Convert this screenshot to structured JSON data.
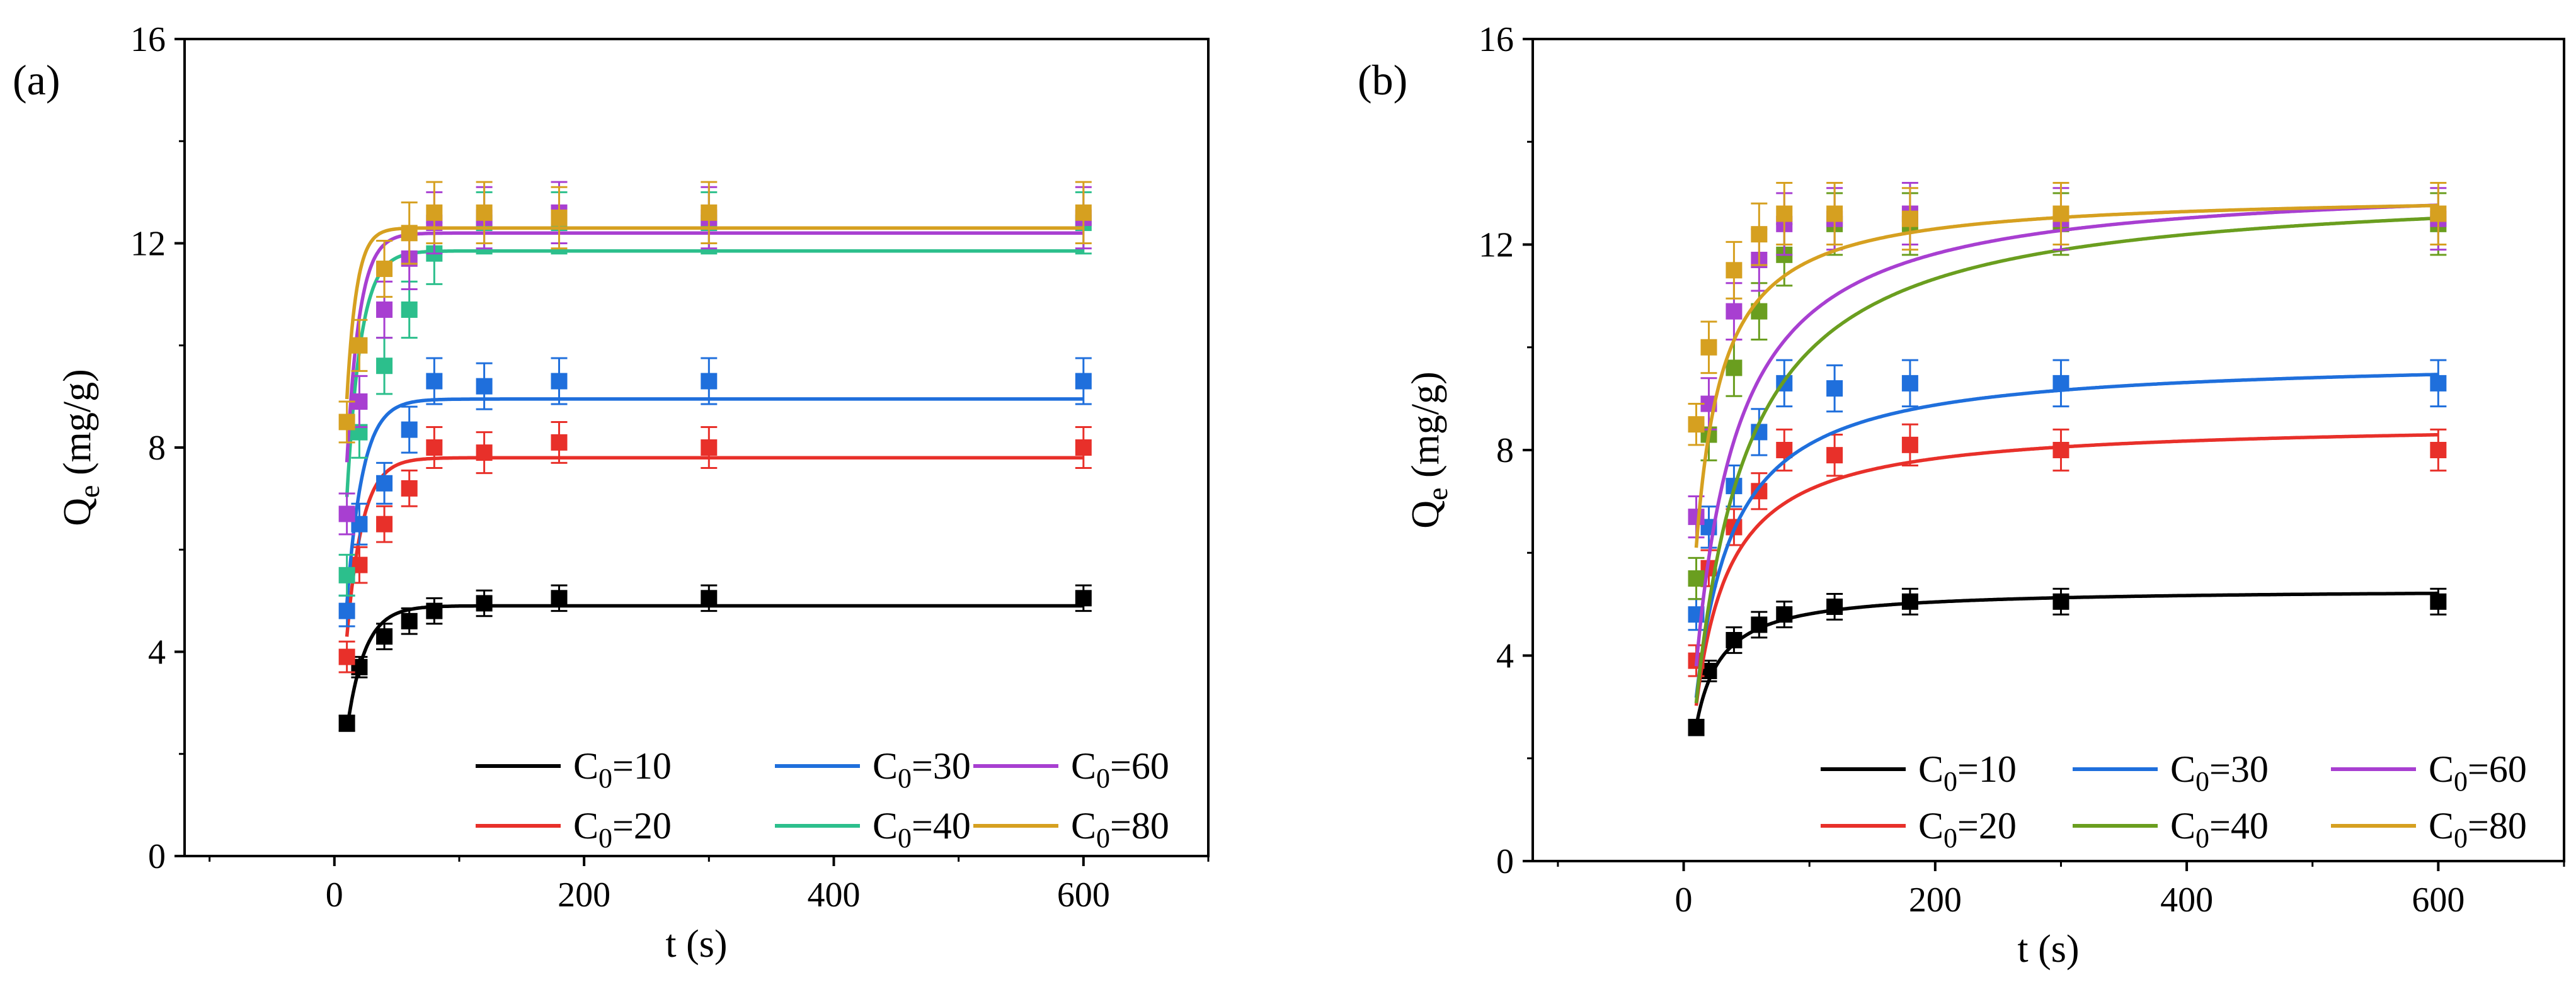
{
  "panels": [
    {
      "label": "(a)",
      "chart_data": {
        "type": "scatter",
        "xlabel": "t (s)",
        "ylabel": "Q_e (mg/g)",
        "xlim": [
          -120,
          700
        ],
        "ylim": [
          0,
          16
        ],
        "xticks": [
          0,
          200,
          400,
          600
        ],
        "yticks": [
          0,
          4,
          8,
          12,
          16
        ],
        "grid": false,
        "legend_position": "bottom-right",
        "fit_model": "pfo",
        "x": [
          10,
          20,
          40,
          60,
          80,
          120,
          180,
          300,
          600
        ],
        "series": [
          {
            "name": "C0=10",
            "legend_subscript": "0",
            "legend_prefix": "C",
            "legend_suffix": "=10",
            "color": "#000000",
            "values": [
              2.6,
              3.7,
              4.3,
              4.6,
              4.8,
              4.95,
              5.05,
              5.05,
              5.05
            ],
            "errors": [
              0.15,
              0.2,
              0.25,
              0.25,
              0.25,
              0.25,
              0.25,
              0.25,
              0.25
            ],
            "fit_qe": 4.9,
            "fit_k": 0.07
          },
          {
            "name": "C0=20",
            "legend_subscript": "0",
            "legend_prefix": "C",
            "legend_suffix": "=20",
            "color": "#e8302a",
            "values": [
              3.9,
              5.7,
              6.5,
              7.2,
              8.0,
              7.9,
              8.1,
              8.0,
              8.0
            ],
            "errors": [
              0.3,
              0.35,
              0.35,
              0.35,
              0.4,
              0.4,
              0.4,
              0.4,
              0.4
            ],
            "fit_qe": 7.8,
            "fit_k": 0.08
          },
          {
            "name": "C0=30",
            "legend_subscript": "0",
            "legend_prefix": "C",
            "legend_suffix": "=30",
            "color": "#1f6fdc",
            "values": [
              4.8,
              6.5,
              7.3,
              8.35,
              9.3,
              9.2,
              9.3,
              9.3,
              9.3
            ],
            "errors": [
              0.3,
              0.4,
              0.4,
              0.45,
              0.45,
              0.45,
              0.45,
              0.45,
              0.45
            ],
            "fit_qe": 8.95,
            "fit_k": 0.08
          },
          {
            "name": "C0=40",
            "legend_subscript": "0",
            "legend_prefix": "C",
            "legend_suffix": "=40",
            "color": "#2cbf8c",
            "values": [
              5.5,
              8.3,
              9.6,
              10.7,
              11.8,
              12.4,
              12.4,
              12.4,
              12.4
            ],
            "errors": [
              0.4,
              0.5,
              0.55,
              0.55,
              0.6,
              0.6,
              0.6,
              0.6,
              0.6
            ],
            "fit_qe": 11.85,
            "fit_k": 0.09
          },
          {
            "name": "C0=60",
            "legend_subscript": "0",
            "legend_prefix": "C",
            "legend_suffix": "=60",
            "color": "#a83fd1",
            "values": [
              6.7,
              8.9,
              10.7,
              11.7,
              12.4,
              12.5,
              12.6,
              12.5,
              12.5
            ],
            "errors": [
              0.4,
              0.5,
              0.55,
              0.6,
              0.6,
              0.6,
              0.6,
              0.6,
              0.6
            ],
            "fit_qe": 12.2,
            "fit_k": 0.1
          },
          {
            "name": "C0=80",
            "legend_subscript": "0",
            "legend_prefix": "C",
            "legend_suffix": "=80",
            "color": "#d6a020",
            "values": [
              8.5,
              10.0,
              11.5,
              12.2,
              12.6,
              12.6,
              12.5,
              12.6,
              12.6
            ],
            "errors": [
              0.4,
              0.5,
              0.55,
              0.6,
              0.6,
              0.6,
              0.6,
              0.6,
              0.6
            ],
            "fit_qe": 12.3,
            "fit_k": 0.13
          }
        ]
      }
    },
    {
      "label": "(b)",
      "chart_data": {
        "type": "scatter",
        "xlabel": "t (s)",
        "ylabel": "Q_e (mg/g)",
        "xlim": [
          -120,
          700
        ],
        "ylim": [
          0,
          16
        ],
        "xticks": [
          0,
          200,
          400,
          600
        ],
        "yticks": [
          0,
          4,
          8,
          12,
          16
        ],
        "grid": false,
        "legend_position": "bottom-right",
        "fit_model": "pso",
        "x": [
          10,
          20,
          40,
          60,
          80,
          120,
          180,
          300,
          600
        ],
        "series": [
          {
            "name": "C0=10",
            "legend_subscript": "0",
            "legend_prefix": "C",
            "legend_suffix": "=10",
            "color": "#000000",
            "values": [
              2.6,
              3.7,
              4.3,
              4.6,
              4.8,
              4.95,
              5.05,
              5.05,
              5.05
            ],
            "errors": [
              0.15,
              0.2,
              0.25,
              0.25,
              0.25,
              0.25,
              0.25,
              0.25,
              0.25
            ],
            "fit_qe": 5.3,
            "fit_k": 0.0185
          },
          {
            "name": "C0=20",
            "legend_subscript": "0",
            "legend_prefix": "C",
            "legend_suffix": "=20",
            "color": "#e8302a",
            "values": [
              3.9,
              5.7,
              6.5,
              7.2,
              8.0,
              7.9,
              8.1,
              8.0,
              8.0
            ],
            "errors": [
              0.3,
              0.35,
              0.35,
              0.35,
              0.4,
              0.4,
              0.4,
              0.4,
              0.4
            ],
            "fit_qe": 8.55,
            "fit_k": 0.0064
          },
          {
            "name": "C0=30",
            "legend_subscript": "0",
            "legend_prefix": "C",
            "legend_suffix": "=30",
            "color": "#1f6fdc",
            "values": [
              4.8,
              6.5,
              7.3,
              8.35,
              9.3,
              9.2,
              9.3,
              9.3,
              9.3
            ],
            "errors": [
              0.3,
              0.4,
              0.4,
              0.45,
              0.45,
              0.45,
              0.45,
              0.45,
              0.45
            ],
            "fit_qe": 9.8,
            "fit_k": 0.0049
          },
          {
            "name": "C0=40",
            "legend_subscript": "0",
            "legend_prefix": "C",
            "legend_suffix": "=40",
            "color": "#6a9e1f",
            "values": [
              5.5,
              8.3,
              9.6,
              10.7,
              11.8,
              12.4,
              12.4,
              12.4,
              12.4
            ],
            "errors": [
              0.4,
              0.5,
              0.55,
              0.55,
              0.6,
              0.6,
              0.6,
              0.6,
              0.6
            ],
            "fit_qe": 13.2,
            "fit_k": 0.0023
          },
          {
            "name": "C0=60",
            "legend_subscript": "0",
            "legend_prefix": "C",
            "legend_suffix": "=60",
            "color": "#a83fd1",
            "values": [
              6.7,
              8.9,
              10.7,
              11.7,
              12.4,
              12.5,
              12.6,
              12.5,
              12.5
            ],
            "errors": [
              0.4,
              0.5,
              0.55,
              0.6,
              0.6,
              0.6,
              0.6,
              0.6,
              0.6
            ],
            "fit_qe": 13.3,
            "fit_k": 0.003
          },
          {
            "name": "C0=80",
            "legend_subscript": "0",
            "legend_prefix": "C",
            "legend_suffix": "=80",
            "color": "#d6a020",
            "values": [
              8.5,
              10.0,
              11.5,
              12.2,
              12.6,
              12.6,
              12.5,
              12.6,
              12.6
            ],
            "errors": [
              0.4,
              0.5,
              0.55,
              0.6,
              0.6,
              0.6,
              0.6,
              0.6,
              0.6
            ],
            "fit_qe": 13.0,
            "fit_k": 0.0068
          }
        ]
      }
    }
  ]
}
